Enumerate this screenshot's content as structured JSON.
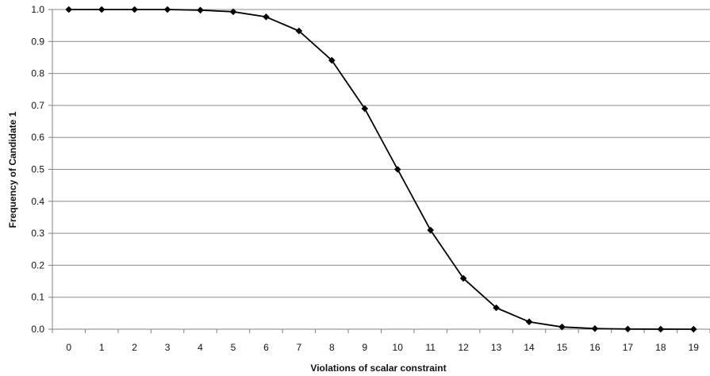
{
  "chart_data": {
    "type": "line",
    "title": "",
    "xlabel": "Violations of scalar constraint",
    "ylabel": "Frequency of Candidate 1",
    "x": [
      0,
      1,
      2,
      3,
      4,
      5,
      6,
      7,
      8,
      9,
      10,
      11,
      12,
      13,
      14,
      15,
      16,
      17,
      18,
      19
    ],
    "series": [
      {
        "values": [
          1.0,
          1.0,
          1.0,
          1.0,
          0.998,
          0.993,
          0.977,
          0.933,
          0.841,
          0.69,
          0.5,
          0.31,
          0.159,
          0.067,
          0.023,
          0.007,
          0.002,
          0.0005,
          0.0001,
          0.0
        ]
      }
    ],
    "x_ticks": [
      "0",
      "1",
      "2",
      "3",
      "4",
      "5",
      "6",
      "7",
      "8",
      "9",
      "10",
      "11",
      "12",
      "13",
      "14",
      "15",
      "16",
      "17",
      "18",
      "19"
    ],
    "y_ticks": [
      "0.0",
      "0.1",
      "0.2",
      "0.3",
      "0.4",
      "0.5",
      "0.6",
      "0.7",
      "0.8",
      "0.9",
      "1.0"
    ],
    "ylim": [
      0,
      1
    ],
    "grid": "horizontal",
    "legend": "none",
    "marker": "diamond",
    "colors": {
      "line": "#000000",
      "grid": "#8c8c8c",
      "axis": "#808080"
    }
  }
}
